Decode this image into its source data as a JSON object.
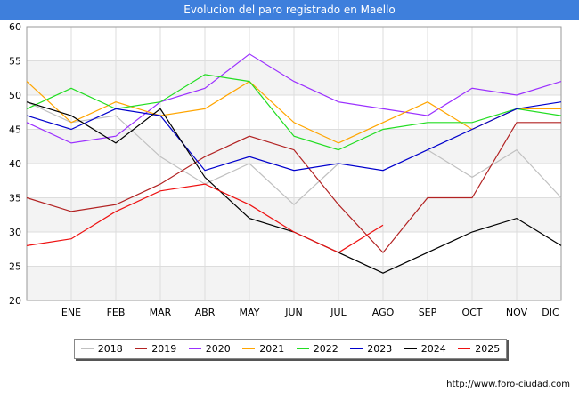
{
  "title": "Evolucion del paro registrado en Maello",
  "footer_url": "http://www.foro-ciudad.com",
  "chart_data": {
    "type": "line",
    "title": "Evolucion del paro registrado en Maello",
    "xlabel": "",
    "ylabel": "",
    "ylim": [
      20,
      60
    ],
    "yticks": [
      20,
      25,
      30,
      35,
      40,
      45,
      50,
      55,
      60
    ],
    "grid": true,
    "legend_position": "bottom",
    "categories": [
      "",
      "ENE",
      "FEB",
      "MAR",
      "ABR",
      "MAY",
      "JUN",
      "JUL",
      "AGO",
      "SEP",
      "OCT",
      "NOV",
      "DIC"
    ],
    "series": [
      {
        "name": "2018",
        "color": "#c0c0c0",
        "values": [
          49,
          46,
          47,
          41,
          37,
          40,
          34,
          40,
          null,
          42,
          38,
          42,
          35
        ]
      },
      {
        "name": "2019",
        "color": "#b22222",
        "values": [
          35,
          33,
          34,
          37,
          41,
          44,
          42,
          34,
          27,
          35,
          35,
          46,
          46
        ]
      },
      {
        "name": "2020",
        "color": "#9b30ff",
        "values": [
          46,
          43,
          44,
          49,
          51,
          56,
          52,
          49,
          48,
          47,
          51,
          50,
          52
        ]
      },
      {
        "name": "2021",
        "color": "#ffa500",
        "values": [
          52,
          46,
          49,
          47,
          48,
          52,
          46,
          43,
          46,
          49,
          45,
          48,
          48
        ]
      },
      {
        "name": "2022",
        "color": "#22dd22",
        "values": [
          48,
          51,
          48,
          49,
          53,
          52,
          44,
          42,
          45,
          46,
          46,
          48,
          47
        ]
      },
      {
        "name": "2023",
        "color": "#0000cc",
        "values": [
          47,
          45,
          48,
          47,
          39,
          41,
          39,
          40,
          39,
          42,
          45,
          48,
          49
        ]
      },
      {
        "name": "2024",
        "color": "#000000",
        "values": [
          49,
          47,
          43,
          48,
          38,
          32,
          30,
          27,
          24,
          27,
          30,
          32,
          28
        ]
      },
      {
        "name": "2025",
        "color": "#ee1111",
        "values": [
          28,
          29,
          33,
          36,
          37,
          34,
          30,
          27,
          31,
          null,
          null,
          null,
          null
        ]
      }
    ]
  }
}
